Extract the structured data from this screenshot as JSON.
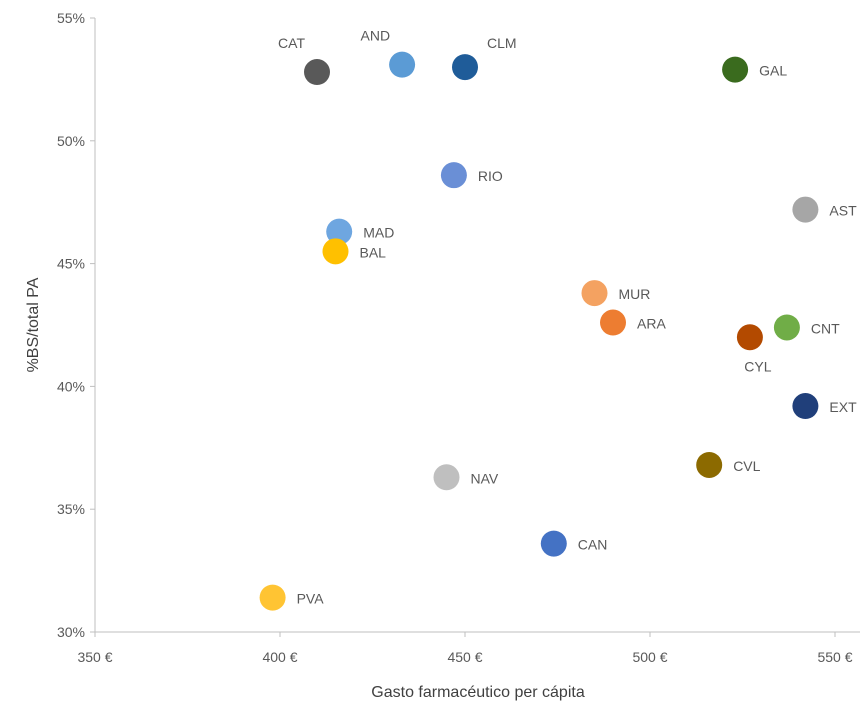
{
  "chart_data": {
    "type": "scatter",
    "title": "",
    "xlabel": "Gasto farmacéutico per cápita",
    "ylabel": "%BS/total PA",
    "xlim": [
      350,
      560
    ],
    "ylim": [
      30,
      55
    ],
    "x_ticks": [
      350,
      400,
      450,
      500,
      550
    ],
    "x_tick_labels": [
      "350 €",
      "400 €",
      "450 €",
      "500 €",
      "550 €"
    ],
    "y_ticks": [
      30,
      35,
      40,
      45,
      50,
      55
    ],
    "y_tick_labels": [
      "30%",
      "35%",
      "40%",
      "45%",
      "50%",
      "55%"
    ],
    "grid": false,
    "legend": "none",
    "points": [
      {
        "label": "CAT",
        "x": 410,
        "y": 52.8,
        "color": "#595959",
        "label_pos": "above-left"
      },
      {
        "label": "AND",
        "x": 433,
        "y": 53.1,
        "color": "#5b9bd5",
        "label_pos": "above-left"
      },
      {
        "label": "CLM",
        "x": 450,
        "y": 53.0,
        "color": "#1f5c99",
        "label_pos": "above-right"
      },
      {
        "label": "GAL",
        "x": 523,
        "y": 52.9,
        "color": "#3a6b1e",
        "label_pos": "right"
      },
      {
        "label": "RIO",
        "x": 447,
        "y": 48.6,
        "color": "#6a8fd6",
        "label_pos": "right"
      },
      {
        "label": "AST",
        "x": 542,
        "y": 47.2,
        "color": "#a6a6a6",
        "label_pos": "right"
      },
      {
        "label": "MAD",
        "x": 416,
        "y": 46.3,
        "color": "#6ea6e0",
        "label_pos": "right"
      },
      {
        "label": "BAL",
        "x": 415,
        "y": 45.5,
        "color": "#ffc000",
        "label_pos": "right"
      },
      {
        "label": "MUR",
        "x": 485,
        "y": 43.8,
        "color": "#f4a261",
        "label_pos": "right"
      },
      {
        "label": "ARA",
        "x": 490,
        "y": 42.6,
        "color": "#ed7d31",
        "label_pos": "right"
      },
      {
        "label": "CNT",
        "x": 537,
        "y": 42.4,
        "color": "#70ad47",
        "label_pos": "right"
      },
      {
        "label": "CYL",
        "x": 527,
        "y": 42.0,
        "color": "#b34a00",
        "label_pos": "below"
      },
      {
        "label": "EXT",
        "x": 542,
        "y": 39.2,
        "color": "#203f7a",
        "label_pos": "right"
      },
      {
        "label": "CVL",
        "x": 516,
        "y": 36.8,
        "color": "#8c6a00",
        "label_pos": "right"
      },
      {
        "label": "NAV",
        "x": 445,
        "y": 36.3,
        "color": "#bfbfbf",
        "label_pos": "right"
      },
      {
        "label": "CAN",
        "x": 474,
        "y": 33.6,
        "color": "#4472c4",
        "label_pos": "right"
      },
      {
        "label": "PVA",
        "x": 398,
        "y": 31.4,
        "color": "#ffc433",
        "label_pos": "right"
      }
    ]
  }
}
